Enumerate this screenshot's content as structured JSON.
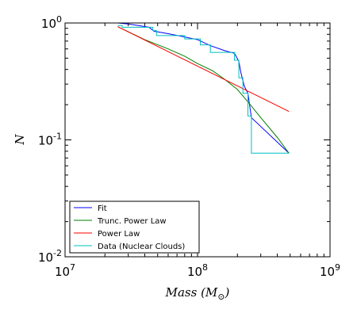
{
  "chart_data": {
    "type": "line",
    "title": "",
    "xlabel": "Mass (M⊙)",
    "xlabel_parts": {
      "main": "Mass (M",
      "sub": "⊙",
      "close": ")"
    },
    "ylabel": "N",
    "xscale": "log",
    "yscale": "log",
    "xlim": [
      10000000,
      1000000000
    ],
    "ylim": [
      0.01,
      1
    ],
    "x_ticks": [
      {
        "value": 10000000,
        "base": "10",
        "exp": "7"
      },
      {
        "value": 100000000,
        "base": "10",
        "exp": "8"
      },
      {
        "value": 1000000000,
        "base": "10",
        "exp": "9"
      }
    ],
    "y_ticks": [
      {
        "value": 0.01,
        "base": "10",
        "exp": "-2"
      },
      {
        "value": 0.1,
        "base": "10",
        "exp": "-1"
      },
      {
        "value": 1,
        "base": "10",
        "exp": "0"
      }
    ],
    "grid": false,
    "legend_position": "lower-left",
    "series": [
      {
        "name": "Fit",
        "color": "#0000ff",
        "points": [
          [
            25000000,
            1.0
          ],
          [
            30000000,
            0.98
          ],
          [
            35000000,
            0.955
          ],
          [
            43000000,
            0.92
          ],
          [
            47000000,
            0.85
          ],
          [
            60000000,
            0.81
          ],
          [
            80000000,
            0.76
          ],
          [
            100000000,
            0.72
          ],
          [
            125000000,
            0.64
          ],
          [
            160000000,
            0.58
          ],
          [
            190000000,
            0.55
          ],
          [
            205000000,
            0.47
          ],
          [
            212000000,
            0.38
          ],
          [
            225000000,
            0.29
          ],
          [
            240000000,
            0.25
          ],
          [
            255000000,
            0.155
          ],
          [
            490000000,
            0.077
          ]
        ]
      },
      {
        "name": "Trunc. Power Law",
        "color": "#008000",
        "points": [
          [
            25000000,
            0.93
          ],
          [
            40000000,
            0.72
          ],
          [
            60000000,
            0.6
          ],
          [
            80000000,
            0.52
          ],
          [
            100000000,
            0.45
          ],
          [
            130000000,
            0.39
          ],
          [
            160000000,
            0.33
          ],
          [
            200000000,
            0.27
          ],
          [
            250000000,
            0.2
          ],
          [
            300000000,
            0.155
          ],
          [
            400000000,
            0.105
          ],
          [
            490000000,
            0.077
          ]
        ]
      },
      {
        "name": "Power Law",
        "color": "#ff0000",
        "points": [
          [
            25000000,
            0.93
          ],
          [
            490000000,
            0.175
          ]
        ]
      },
      {
        "name": "Data (Nuclear Clouds)",
        "color": "#00bfbf",
        "step": true,
        "points": [
          [
            25000000,
            0.95
          ],
          [
            27000000,
            0.92
          ],
          [
            46000000,
            0.86
          ],
          [
            49000000,
            0.78
          ],
          [
            80000000,
            0.73
          ],
          [
            105000000,
            0.65
          ],
          [
            125000000,
            0.56
          ],
          [
            190000000,
            0.48
          ],
          [
            205000000,
            0.34
          ],
          [
            220000000,
            0.25
          ],
          [
            240000000,
            0.16
          ],
          [
            255000000,
            0.077
          ],
          [
            490000000,
            0.077
          ]
        ]
      }
    ]
  }
}
